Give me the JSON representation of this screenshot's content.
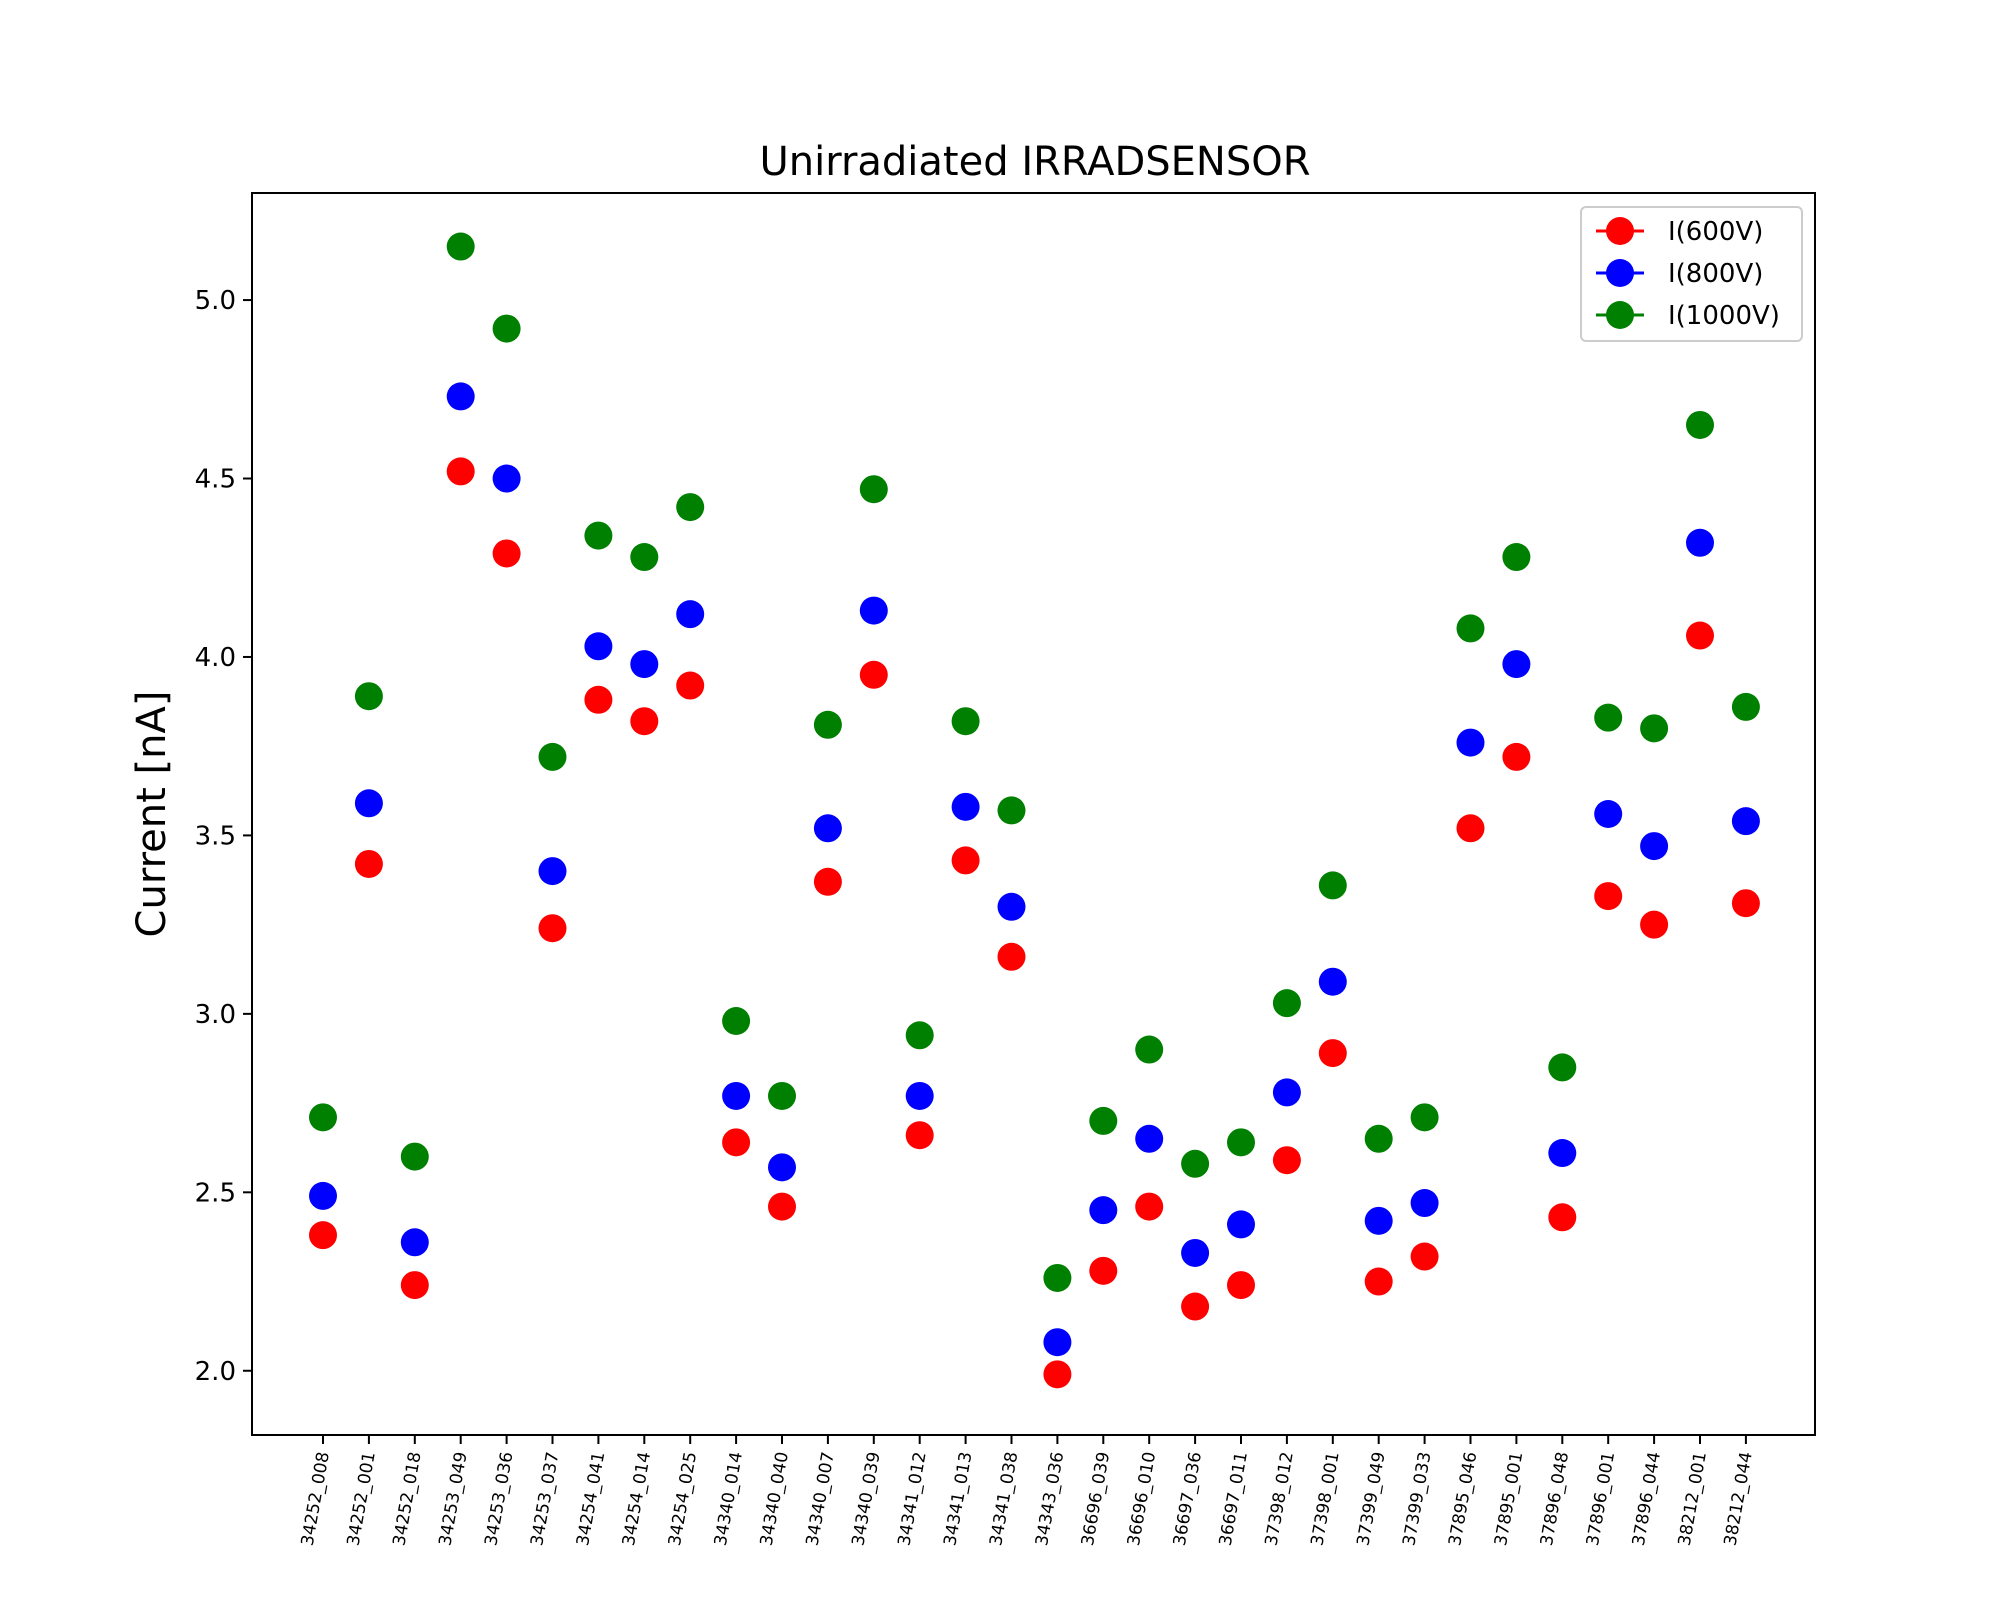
{
  "chart_data": {
    "type": "scatter",
    "title": "Unirradiated IRRADSENSOR",
    "xlabel": "",
    "ylabel": "Current [nA]",
    "ylim": [
      1.82,
      5.3
    ],
    "yticks": [
      2.0,
      2.5,
      3.0,
      3.5,
      4.0,
      4.5,
      5.0
    ],
    "grid": false,
    "legend_position": "top-right",
    "categories": [
      "34252_008",
      "34252_001",
      "34252_018",
      "34253_049",
      "34253_036",
      "34253_037",
      "34254_041",
      "34254_014",
      "34254_025",
      "34340_014",
      "34340_040",
      "34340_007",
      "34340_039",
      "34341_012",
      "34341_013",
      "34341_038",
      "34343_036",
      "36696_039",
      "36696_010",
      "36697_036",
      "36697_011",
      "37398_012",
      "37398_001",
      "37399_049",
      "37399_033",
      "37895_046",
      "37895_001",
      "37896_048",
      "37896_001",
      "37896_044",
      "38212_001",
      "38212_044"
    ],
    "series": [
      {
        "name": "I(600V)",
        "color": "#ff0000",
        "values": [
          2.38,
          3.42,
          2.24,
          4.52,
          4.29,
          3.24,
          3.88,
          3.82,
          3.92,
          2.64,
          2.46,
          3.37,
          3.95,
          2.66,
          3.43,
          3.16,
          1.99,
          2.28,
          2.46,
          2.18,
          2.24,
          2.59,
          2.89,
          2.25,
          2.32,
          3.52,
          3.72,
          2.43,
          3.33,
          3.25,
          4.06,
          3.31
        ]
      },
      {
        "name": "I(800V)",
        "color": "#0000ff",
        "values": [
          2.49,
          3.59,
          2.36,
          4.73,
          4.5,
          3.4,
          4.03,
          3.98,
          4.12,
          2.77,
          2.57,
          3.52,
          4.13,
          2.77,
          3.58,
          3.3,
          2.08,
          2.45,
          2.65,
          2.33,
          2.41,
          2.78,
          3.09,
          2.42,
          2.47,
          3.76,
          3.98,
          2.61,
          3.56,
          3.47,
          4.32,
          3.54
        ]
      },
      {
        "name": "I(1000V)",
        "color": "#008000",
        "values": [
          2.71,
          3.89,
          2.6,
          5.15,
          4.92,
          3.72,
          4.34,
          4.28,
          4.42,
          2.98,
          2.77,
          3.81,
          4.47,
          2.94,
          3.82,
          3.57,
          2.26,
          2.7,
          2.9,
          2.58,
          2.64,
          3.03,
          3.36,
          2.65,
          2.71,
          4.08,
          4.28,
          2.85,
          3.83,
          3.8,
          4.65,
          3.86
        ]
      }
    ]
  }
}
